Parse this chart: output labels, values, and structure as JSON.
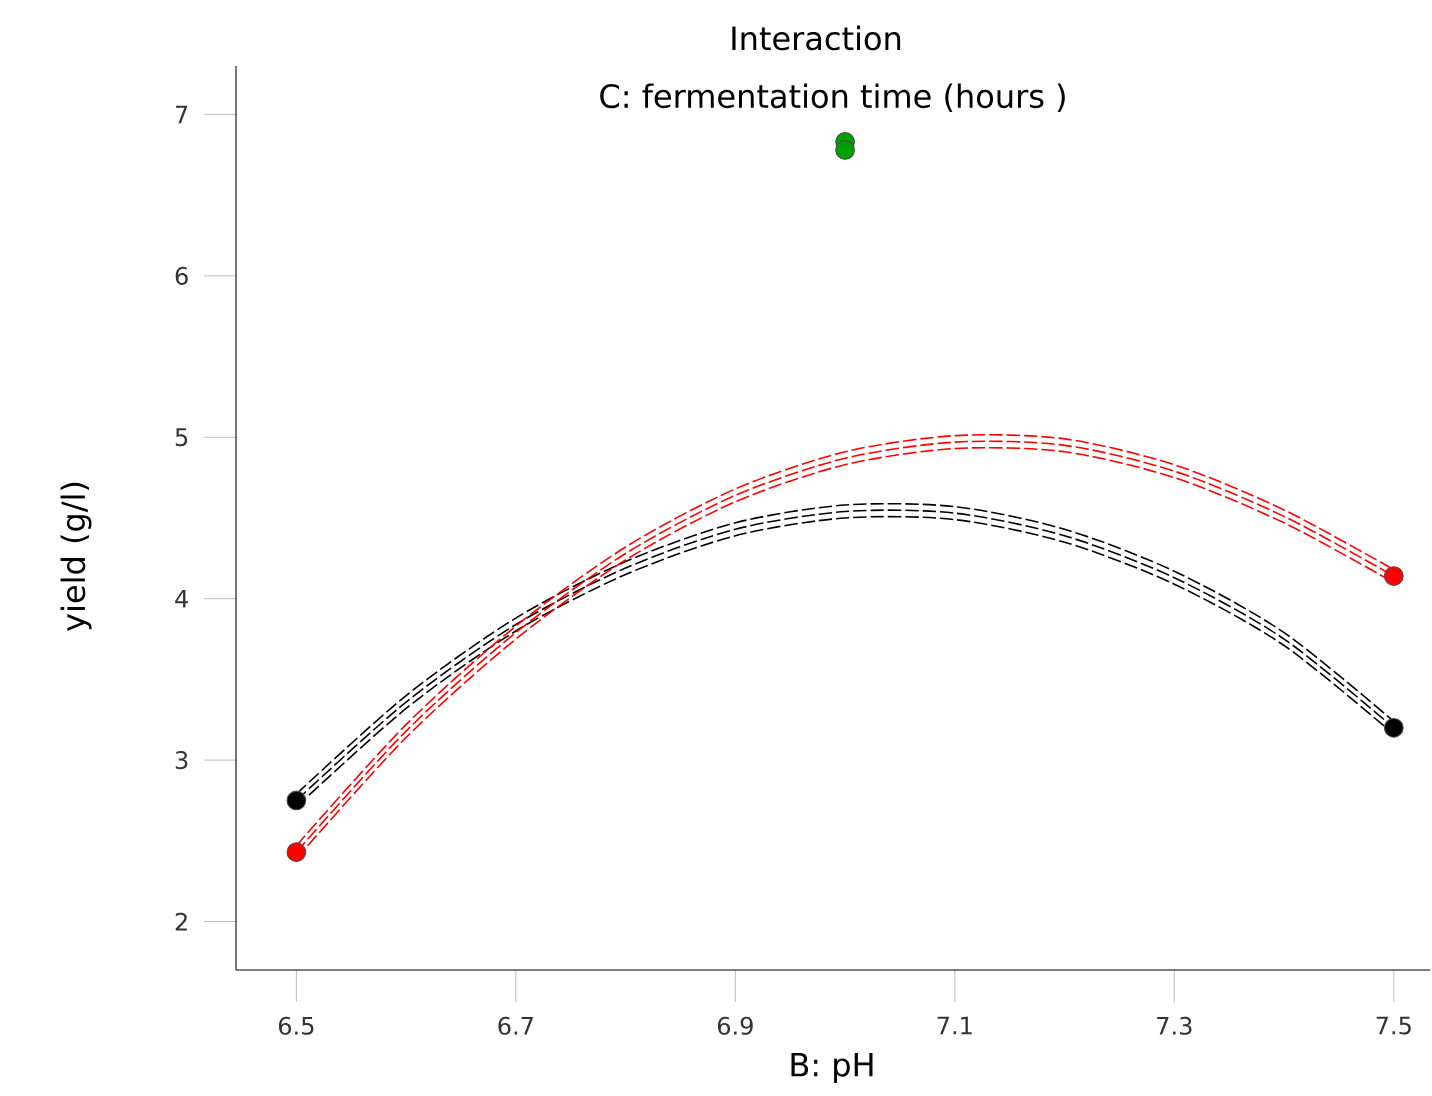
{
  "chart_data": {
    "type": "line",
    "title": "Interaction",
    "legend_title": "C: fermentation time (hours )",
    "xlabel": "B: pH",
    "ylabel": "yield (g/l)",
    "x": [
      6.5,
      6.6,
      6.7,
      6.8,
      6.9,
      7.0,
      7.1,
      7.2,
      7.3,
      7.4,
      7.5
    ],
    "xlim": [
      6.445,
      7.533
    ],
    "ylim": [
      1.7,
      7.3
    ],
    "xticks": [
      6.5,
      6.7,
      6.9,
      7.1,
      7.3,
      7.5
    ],
    "yticks": [
      2,
      3,
      4,
      5,
      6,
      7
    ],
    "grid": false,
    "line_style": "dashed",
    "series": [
      {
        "color": "#000000",
        "values": [
          2.75,
          3.36,
          3.84,
          4.19,
          4.43,
          4.54,
          4.53,
          4.39,
          4.13,
          3.75,
          3.2
        ]
      },
      {
        "color": "#000000",
        "values": [
          2.71,
          3.32,
          3.8,
          4.15,
          4.39,
          4.5,
          4.49,
          4.35,
          4.09,
          3.71,
          3.16
        ]
      },
      {
        "color": "#000000",
        "values": [
          2.79,
          3.4,
          3.88,
          4.23,
          4.47,
          4.58,
          4.57,
          4.43,
          4.17,
          3.79,
          3.24
        ]
      },
      {
        "color": "#ff0000",
        "values": [
          2.43,
          3.18,
          3.79,
          4.28,
          4.64,
          4.87,
          4.97,
          4.95,
          4.79,
          4.51,
          4.14
        ]
      },
      {
        "color": "#ff0000",
        "values": [
          2.39,
          3.14,
          3.75,
          4.24,
          4.6,
          4.83,
          4.93,
          4.91,
          4.75,
          4.47,
          4.1
        ]
      },
      {
        "color": "#ff0000",
        "values": [
          2.47,
          3.22,
          3.83,
          4.32,
          4.68,
          4.91,
          5.01,
          4.99,
          4.83,
          4.55,
          4.18
        ]
      },
      {
        "type": "scatter",
        "marker": "circle",
        "color": "#000000",
        "x": [
          6.5,
          7.5
        ],
        "values": [
          2.75,
          3.2
        ]
      },
      {
        "type": "scatter",
        "marker": "circle",
        "color": "#ff0000",
        "x": [
          6.5,
          7.5
        ],
        "values": [
          2.43,
          4.14
        ]
      },
      {
        "type": "scatter",
        "marker": "circle",
        "color": "#00a000",
        "x": [
          7.0,
          7.0
        ],
        "values": [
          6.83,
          6.78
        ]
      }
    ]
  }
}
